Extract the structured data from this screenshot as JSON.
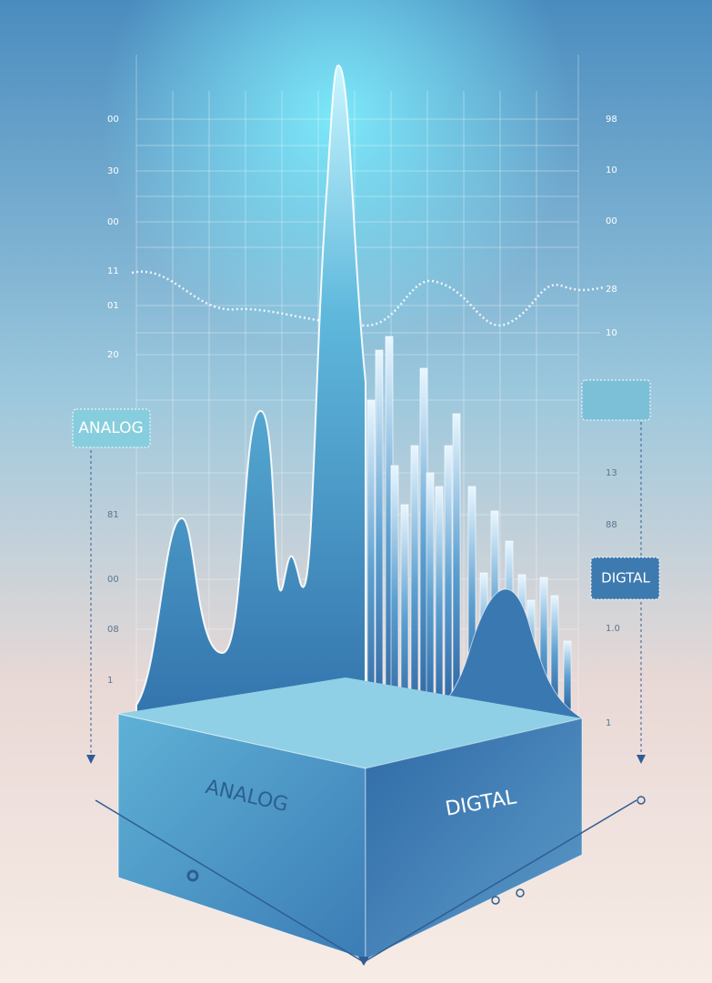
{
  "left_labels": [
    "00",
    "30",
    "00",
    "11",
    "01",
    "20",
    "81",
    "00",
    "08",
    "1"
  ],
  "right_labels": [
    "98",
    "10",
    "00",
    "28",
    "10",
    "13",
    "88",
    "1.0",
    "1"
  ],
  "tags": {
    "analog": "ANALOG",
    "digital": "DIGTAL"
  },
  "base": {
    "analog": "ANALOG",
    "digital": "DIGTAL"
  }
}
